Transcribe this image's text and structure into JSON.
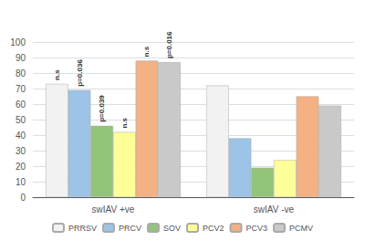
{
  "chart_data": {
    "type": "bar",
    "categories": [
      "swIAV +ve",
      "swIAV -ve"
    ],
    "series": [
      {
        "name": "PRRSV",
        "color": "#f2f2f2",
        "values": [
          73,
          72
        ],
        "annotations": [
          "n.s",
          null
        ]
      },
      {
        "name": "PRCV",
        "color": "#9dc3e6",
        "values": [
          69,
          38
        ],
        "annotations": [
          "p=0.036",
          null
        ]
      },
      {
        "name": "SOV",
        "color": "#92c47a",
        "values": [
          46,
          19
        ],
        "annotations": [
          "p=0.039",
          null
        ]
      },
      {
        "name": "PCV2",
        "color": "#ffff99",
        "values": [
          42,
          24
        ],
        "annotations": [
          "n.s",
          null
        ]
      },
      {
        "name": "PCV3",
        "color": "#f4b183",
        "values": [
          88,
          65
        ],
        "annotations": [
          "n.s",
          null
        ]
      },
      {
        "name": "PCMV",
        "color": "#c9c9c9",
        "values": [
          87,
          59
        ],
        "annotations": [
          "p=0.016",
          null
        ]
      }
    ],
    "ylim": [
      0,
      100
    ],
    "yticks": [
      0,
      10,
      20,
      30,
      40,
      50,
      60,
      70,
      80,
      90,
      100
    ],
    "grid": true,
    "legend": "bottom"
  }
}
